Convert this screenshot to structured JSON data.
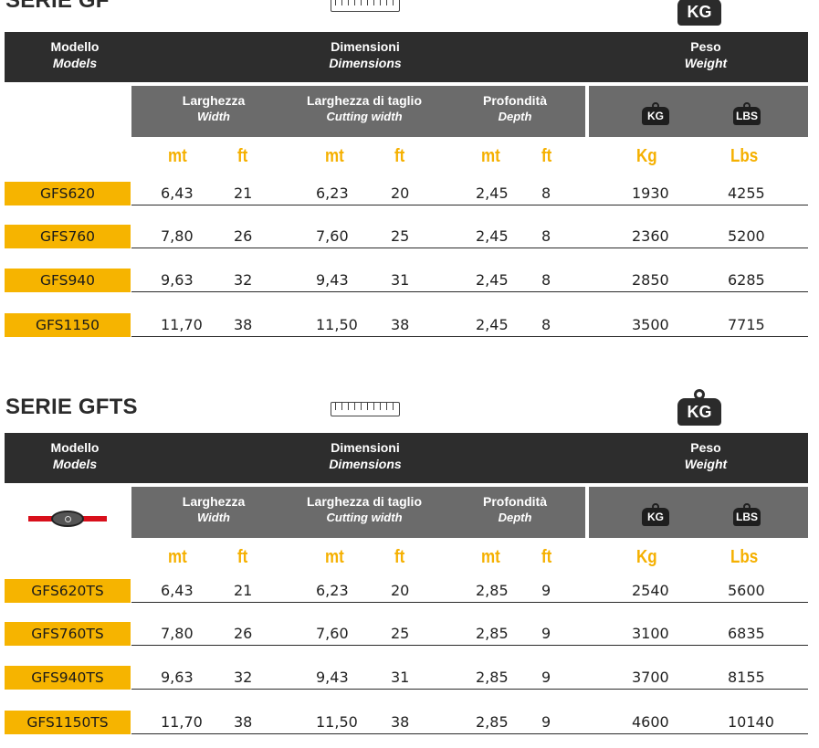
{
  "sections": [
    {
      "title": "SERIE GF",
      "header": {
        "models_label": "Modello",
        "models_label_en": "Models",
        "dims_label": "Dimensioni",
        "dims_label_en": "Dimensions",
        "weight_label": "Peso",
        "weight_label_en": "Weight"
      },
      "sub": {
        "width": "Larghezza",
        "width_en": "Width",
        "cut": "Larghezza di taglio",
        "cut_en": "Cutting width",
        "depth": "Profondità",
        "depth_en": "Depth",
        "kg_icon": "KG",
        "lbs_icon": "LBS"
      },
      "units": [
        "mt",
        "ft",
        "mt",
        "ft",
        "mt",
        "ft",
        "Kg",
        "Lbs"
      ],
      "rows": [
        {
          "model": "GFS620",
          "w_mt": "6,43",
          "w_ft": "21",
          "c_mt": "6,23",
          "c_ft": "20",
          "d_mt": "2,45",
          "d_ft": "8",
          "kg": "1930",
          "lbs": "4255"
        },
        {
          "model": "GFS760",
          "w_mt": "7,80",
          "w_ft": "26",
          "c_mt": "7,60",
          "c_ft": "25",
          "d_mt": "2,45",
          "d_ft": "8",
          "kg": "2360",
          "lbs": "5200"
        },
        {
          "model": "GFS940",
          "w_mt": "9,63",
          "w_ft": "32",
          "c_mt": "9,43",
          "c_ft": "31",
          "d_mt": "2,45",
          "d_ft": "8",
          "kg": "2850",
          "lbs": "6285"
        },
        {
          "model": "GFS1150",
          "w_mt": "11,70",
          "w_ft": "38",
          "c_mt": "11,50",
          "c_ft": "38",
          "d_mt": "2,45",
          "d_ft": "8",
          "kg": "3500",
          "lbs": "7715"
        }
      ]
    },
    {
      "title": "SERIE GFTS",
      "header": {
        "models_label": "Modello",
        "models_label_en": "Models",
        "dims_label": "Dimensioni",
        "dims_label_en": "Dimensions",
        "weight_label": "Peso",
        "weight_label_en": "Weight"
      },
      "sub": {
        "width": "Larghezza",
        "width_en": "Width",
        "cut": "Larghezza di taglio",
        "cut_en": "Cutting width",
        "depth": "Profondità",
        "depth_en": "Depth",
        "kg_icon": "KG",
        "lbs_icon": "LBS"
      },
      "units": [
        "mt",
        "ft",
        "mt",
        "ft",
        "mt",
        "ft",
        "Kg",
        "Lbs"
      ],
      "rows": [
        {
          "model": "GFS620TS",
          "w_mt": "6,43",
          "w_ft": "21",
          "c_mt": "6,23",
          "c_ft": "20",
          "d_mt": "2,85",
          "d_ft": "9",
          "kg": "2540",
          "lbs": "5600"
        },
        {
          "model": "GFS760TS",
          "w_mt": "7,80",
          "w_ft": "26",
          "c_mt": "7,60",
          "c_ft": "25",
          "d_mt": "2,85",
          "d_ft": "9",
          "kg": "3100",
          "lbs": "6835"
        },
        {
          "model": "GFS940TS",
          "w_mt": "9,63",
          "w_ft": "32",
          "c_mt": "9,43",
          "c_ft": "31",
          "d_mt": "2,85",
          "d_ft": "9",
          "kg": "3700",
          "lbs": "8155"
        },
        {
          "model": "GFS1150TS",
          "w_mt": "11,70",
          "w_ft": "38",
          "c_mt": "11,50",
          "c_ft": "38",
          "d_mt": "2,85",
          "d_ft": "9",
          "kg": "4600",
          "lbs": "10140"
        }
      ]
    }
  ],
  "badge_text": "KG",
  "colors": {
    "accent": "#f6b400",
    "header": "#2d2d2d",
    "subheader": "#6b6b6b",
    "rod": "#d80f1b"
  },
  "icons": [
    "ruler-icon",
    "kg-weight-icon",
    "tow-bar-icon"
  ]
}
